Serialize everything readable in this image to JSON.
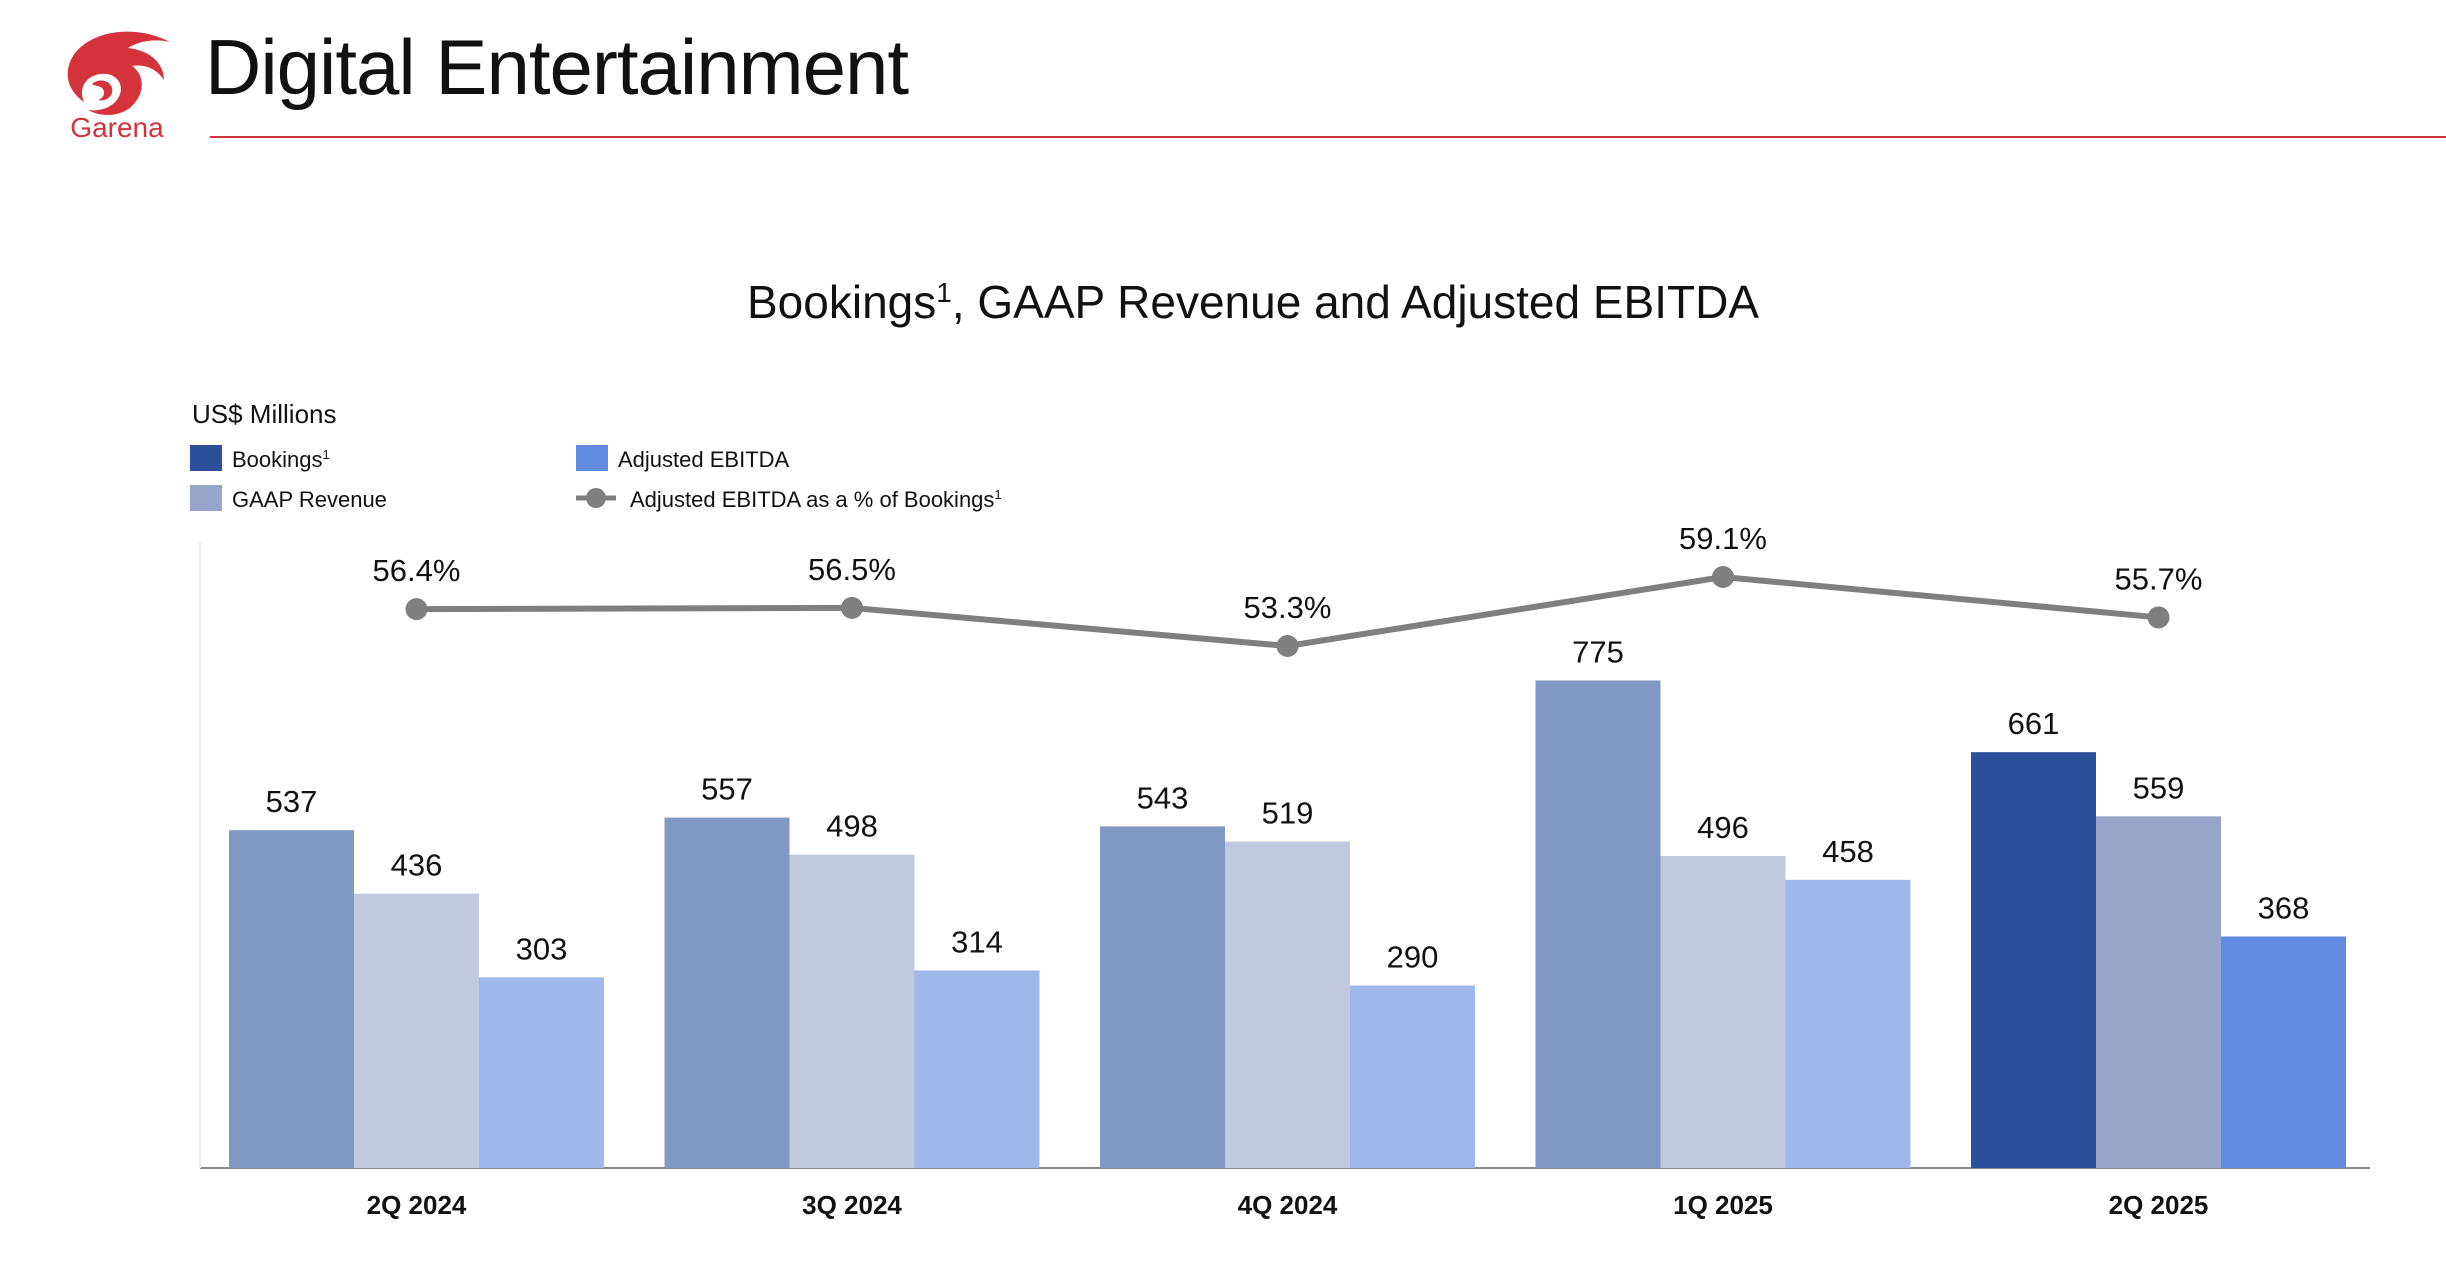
{
  "header": {
    "title": "Digital Entertainment",
    "logo_text": "Garena",
    "accent_color": "#d4333c"
  },
  "chart_data": {
    "type": "bar",
    "title": "Bookings",
    "title_footnote": "1",
    "title_rest": ", GAAP Revenue and Adjusted EBITDA",
    "unit_label": "US$ Millions",
    "categories": [
      "2Q 2024",
      "3Q 2024",
      "4Q 2024",
      "1Q 2025",
      "2Q 2025"
    ],
    "series": [
      {
        "name": "Bookings",
        "footnote": "1",
        "values": [
          537,
          557,
          543,
          775,
          661
        ],
        "color": "#2c509a",
        "faded_color": "#8098c3"
      },
      {
        "name": "GAAP Revenue",
        "values": [
          436,
          498,
          519,
          496,
          559
        ],
        "color": "#96a5c8",
        "faded_color": "#c1c9de"
      },
      {
        "name": "Adjusted EBITDA",
        "values": [
          303,
          314,
          290,
          458,
          368
        ],
        "color": "#618ae1",
        "faded_color": "#a0b7eb"
      }
    ],
    "line_series": {
      "name": "Adjusted EBITDA as a % of Bookings",
      "footnote": "1",
      "values": [
        56.4,
        56.5,
        53.3,
        59.1,
        55.7
      ],
      "labels": [
        "56.4%",
        "56.5%",
        "53.3%",
        "59.1%",
        "55.7%"
      ],
      "color": "#7f7f7f"
    },
    "highlight_category": "2Q 2025",
    "ylim": [
      0,
      1000
    ],
    "legend_position": "top-left"
  }
}
